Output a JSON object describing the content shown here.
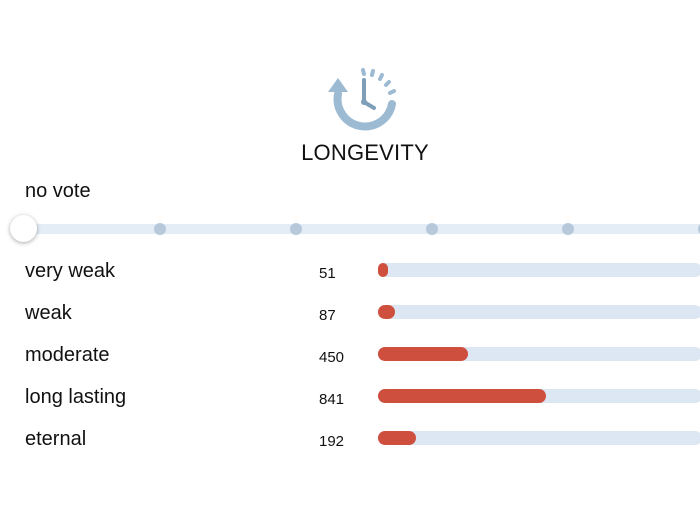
{
  "header": {
    "icon": "clock-rewind-icon",
    "title": "LONGEVITY"
  },
  "vote": {
    "label": "no vote",
    "slider_steps": 6,
    "selected_step": 0
  },
  "colors": {
    "fill": "#cf4f3e",
    "track": "#dce7f3",
    "icon": "#9dbad3"
  },
  "results": [
    {
      "label": "very weak",
      "count": "51",
      "value": 51
    },
    {
      "label": "weak",
      "count": "87",
      "value": 87
    },
    {
      "label": "moderate",
      "count": "450",
      "value": 450
    },
    {
      "label": "long lasting",
      "count": "841",
      "value": 841
    },
    {
      "label": "eternal",
      "count": "192",
      "value": 192
    }
  ]
}
